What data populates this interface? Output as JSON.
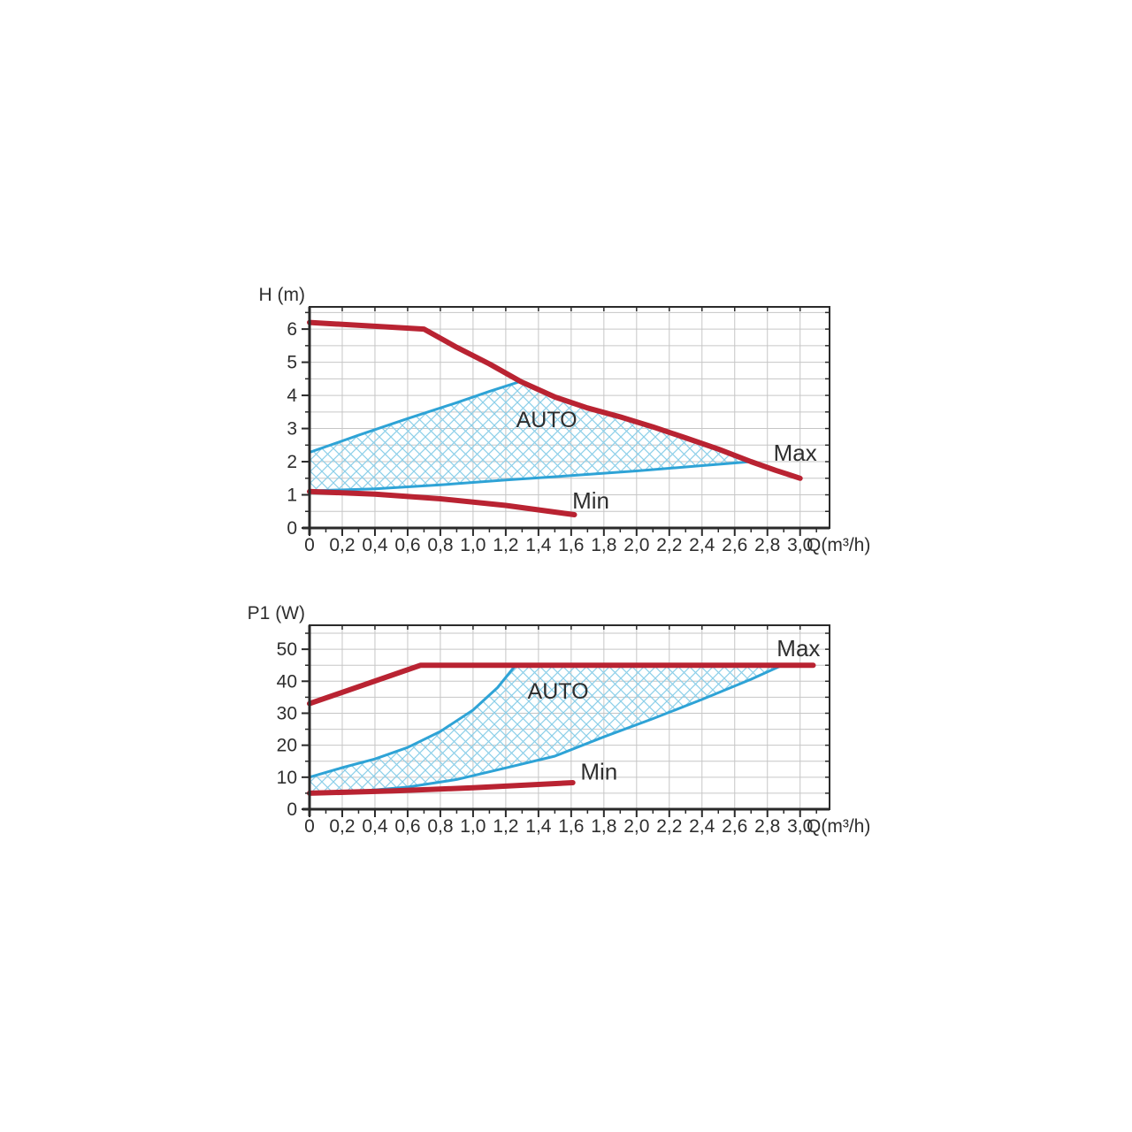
{
  "figure": {
    "description": "Pump performance curves: head and power input versus flow with AUTO control range"
  },
  "colors": {
    "curve_red": "#b92332",
    "curve_blue": "#2ea3d6",
    "hatch_blue": "#8ccfe9",
    "grid": "#c6c6c6",
    "axis": "#2a2a2a",
    "text": "#2e2e2e"
  },
  "chart_data": [
    {
      "id": "head-flow-chart",
      "type": "line",
      "title": "",
      "ylabel": "H (m)",
      "xlabel": "Q(m³/h)",
      "xlim": [
        0,
        3.18
      ],
      "ylim": [
        0,
        6.67
      ],
      "grid": true,
      "xticks": {
        "step": 0.1,
        "major_every": 2,
        "labels": [
          "0",
          "0,2",
          "0,4",
          "0,6",
          "0,8",
          "1,0",
          "1,2",
          "1,4",
          "1,6",
          "1,8",
          "2,0",
          "2,2",
          "2,4",
          "2,6",
          "2,8",
          "3,0"
        ]
      },
      "yticks": {
        "step": 0.5,
        "major_every": 2,
        "labels": [
          "0",
          "1",
          "2",
          "3",
          "4",
          "5",
          "6"
        ]
      },
      "region": {
        "name": "auto-region",
        "points": [
          [
            0,
            2.28
          ],
          [
            0.3,
            2.8
          ],
          [
            0.6,
            3.3
          ],
          [
            0.9,
            3.78
          ],
          [
            1.1,
            4.12
          ],
          [
            1.29,
            4.42
          ],
          [
            1.5,
            3.95
          ],
          [
            1.7,
            3.62
          ],
          [
            1.9,
            3.35
          ],
          [
            2.1,
            3.05
          ],
          [
            2.3,
            2.72
          ],
          [
            2.5,
            2.38
          ],
          [
            2.7,
            2.0
          ],
          [
            2.35,
            1.86
          ],
          [
            2.0,
            1.72
          ],
          [
            1.6,
            1.58
          ],
          [
            1.2,
            1.45
          ],
          [
            0.8,
            1.3
          ],
          [
            0.4,
            1.18
          ],
          [
            0,
            1.12
          ]
        ]
      },
      "series": [
        {
          "name": "auto-upper-boundary",
          "color_key": "curve_blue",
          "width": 3,
          "points": [
            [
              0,
              2.28
            ],
            [
              0.3,
              2.8
            ],
            [
              0.6,
              3.3
            ],
            [
              0.9,
              3.78
            ],
            [
              1.1,
              4.12
            ],
            [
              1.29,
              4.42
            ]
          ]
        },
        {
          "name": "auto-lower-boundary",
          "color_key": "curve_blue",
          "width": 3,
          "points": [
            [
              0,
              1.12
            ],
            [
              0.4,
              1.18
            ],
            [
              0.8,
              1.3
            ],
            [
              1.2,
              1.45
            ],
            [
              1.6,
              1.58
            ],
            [
              2.0,
              1.72
            ],
            [
              2.35,
              1.86
            ],
            [
              2.7,
              2.0
            ]
          ]
        },
        {
          "name": "max-curve",
          "color_key": "curve_red",
          "width": 6,
          "points": [
            [
              0,
              6.2
            ],
            [
              0.7,
              6.0
            ],
            [
              0.9,
              5.45
            ],
            [
              1.1,
              4.95
            ],
            [
              1.29,
              4.42
            ],
            [
              1.5,
              3.95
            ],
            [
              1.7,
              3.62
            ],
            [
              1.9,
              3.35
            ],
            [
              2.1,
              3.05
            ],
            [
              2.3,
              2.72
            ],
            [
              2.5,
              2.38
            ],
            [
              2.7,
              2.0
            ],
            [
              2.85,
              1.74
            ],
            [
              3.0,
              1.5
            ]
          ]
        },
        {
          "name": "min-curve",
          "color_key": "curve_red",
          "width": 6,
          "points": [
            [
              0,
              1.1
            ],
            [
              0.4,
              1.02
            ],
            [
              0.8,
              0.88
            ],
            [
              1.2,
              0.68
            ],
            [
              1.62,
              0.4
            ]
          ]
        }
      ],
      "annotations": [
        {
          "name": "auto-label",
          "text": "AUTO",
          "x": 1.45,
          "y": 3.28,
          "size": 25
        },
        {
          "name": "max-label",
          "text": "Max",
          "x": 2.97,
          "y": 2.27,
          "size": 26
        },
        {
          "name": "min-label",
          "text": "Min",
          "x": 1.72,
          "y": 0.83,
          "size": 26
        }
      ]
    },
    {
      "id": "power-flow-chart",
      "type": "line",
      "title": "",
      "ylabel": "P1 (W)",
      "xlabel": "Q(m³/h)",
      "xlim": [
        0,
        3.18
      ],
      "ylim": [
        0,
        57.5
      ],
      "grid": true,
      "xticks": {
        "step": 0.1,
        "major_every": 2,
        "labels": [
          "0",
          "0,2",
          "0,4",
          "0,6",
          "0,8",
          "1,0",
          "1,2",
          "1,4",
          "1,6",
          "1,8",
          "2,0",
          "2,2",
          "2,4",
          "2,6",
          "2,8",
          "3,0"
        ]
      },
      "yticks": {
        "step": 5,
        "major_every": 2,
        "labels": [
          "0",
          "10",
          "20",
          "30",
          "40",
          "50"
        ]
      },
      "region": {
        "name": "auto-region",
        "points": [
          [
            0,
            10
          ],
          [
            0.2,
            13
          ],
          [
            0.4,
            15.7
          ],
          [
            0.6,
            19.3
          ],
          [
            0.8,
            24.3
          ],
          [
            1.0,
            31
          ],
          [
            1.15,
            38
          ],
          [
            1.26,
            45
          ],
          [
            2.89,
            45
          ],
          [
            2.7,
            40.6
          ],
          [
            2.4,
            34.3
          ],
          [
            2.1,
            28.3
          ],
          [
            1.8,
            22.6
          ],
          [
            1.5,
            16.6
          ],
          [
            1.2,
            12.9
          ],
          [
            0.9,
            9.3
          ],
          [
            0.6,
            6.9
          ],
          [
            0.3,
            5.6
          ],
          [
            0,
            5
          ]
        ]
      },
      "series": [
        {
          "name": "auto-upper-boundary",
          "color_key": "curve_blue",
          "width": 3,
          "points": [
            [
              0,
              10
            ],
            [
              0.2,
              13
            ],
            [
              0.4,
              15.7
            ],
            [
              0.6,
              19.3
            ],
            [
              0.8,
              24.3
            ],
            [
              1.0,
              31
            ],
            [
              1.15,
              38
            ],
            [
              1.26,
              45
            ]
          ]
        },
        {
          "name": "auto-lower-boundary",
          "color_key": "curve_blue",
          "width": 3,
          "points": [
            [
              0,
              5
            ],
            [
              0.3,
              5.6
            ],
            [
              0.6,
              6.9
            ],
            [
              0.9,
              9.3
            ],
            [
              1.2,
              12.9
            ],
            [
              1.5,
              16.6
            ],
            [
              1.8,
              22.6
            ],
            [
              2.1,
              28.3
            ],
            [
              2.4,
              34.3
            ],
            [
              2.7,
              40.6
            ],
            [
              2.89,
              45
            ]
          ]
        },
        {
          "name": "max-curve",
          "color_key": "curve_red",
          "width": 6,
          "points": [
            [
              0,
              33
            ],
            [
              0.68,
              45
            ],
            [
              3.08,
              45
            ]
          ]
        },
        {
          "name": "min-curve",
          "color_key": "curve_red",
          "width": 6,
          "points": [
            [
              0,
              5
            ],
            [
              0.5,
              5.7
            ],
            [
              1.0,
              6.7
            ],
            [
              1.61,
              8.3
            ]
          ]
        }
      ],
      "annotations": [
        {
          "name": "auto-label",
          "text": "AUTO",
          "x": 1.52,
          "y": 37,
          "size": 25
        },
        {
          "name": "max-label",
          "text": "Max",
          "x": 2.99,
          "y": 50.3,
          "size": 26
        },
        {
          "name": "min-label",
          "text": "Min",
          "x": 1.77,
          "y": 11.8,
          "size": 26
        }
      ]
    }
  ]
}
